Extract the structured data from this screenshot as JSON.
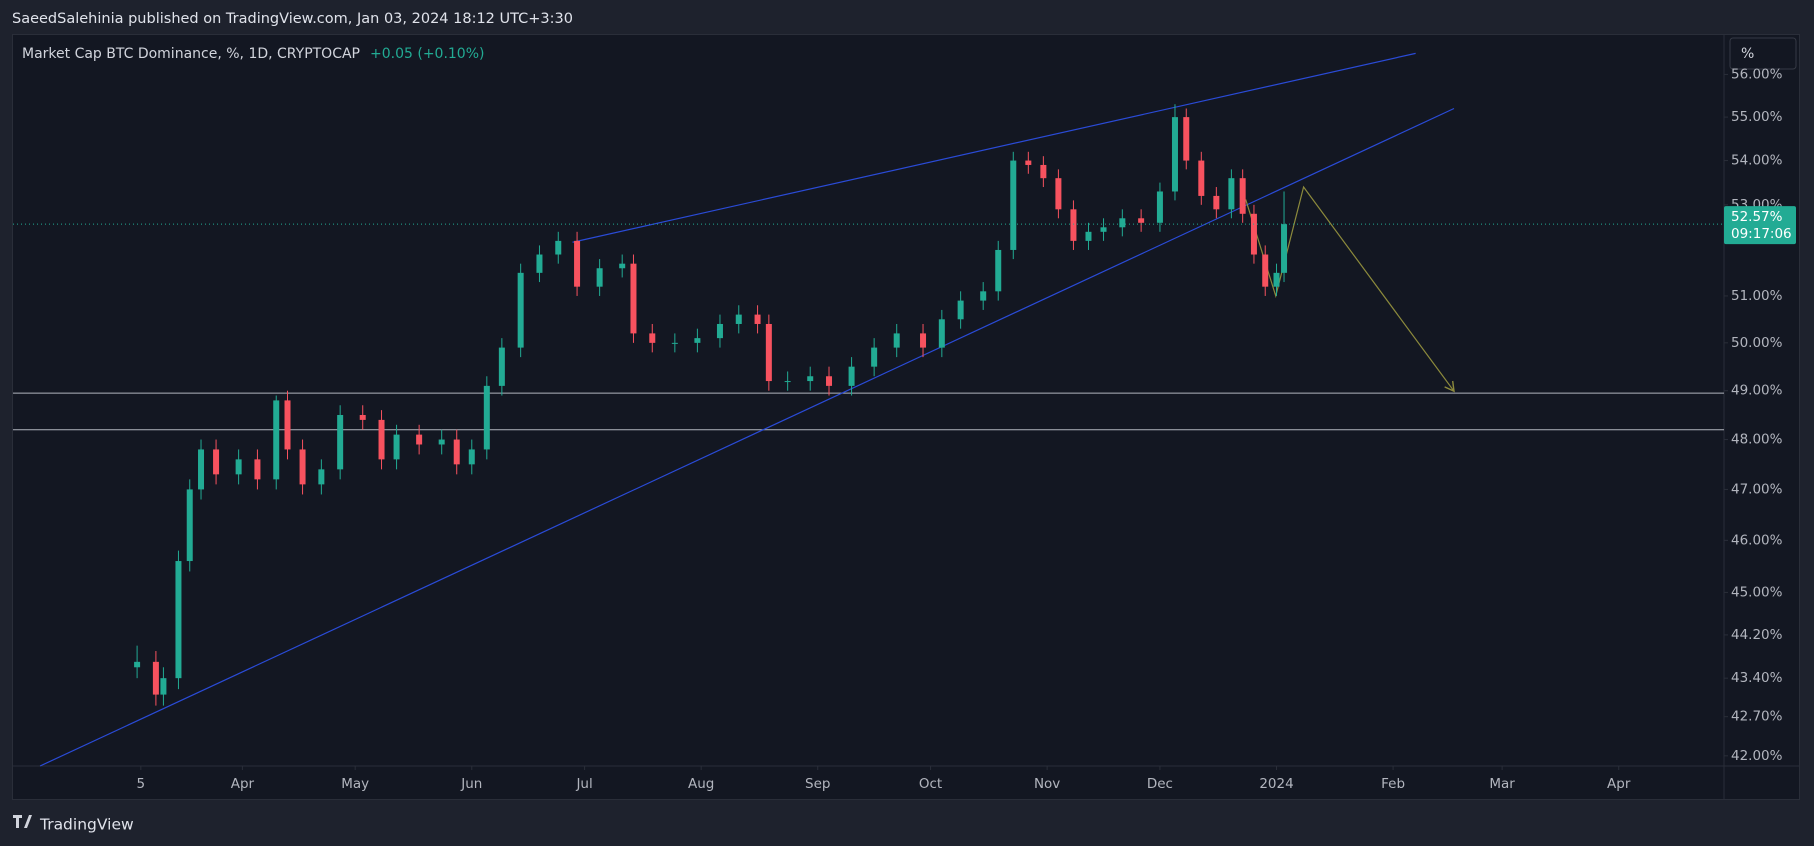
{
  "header": {
    "publisher": "SaeedSalehinia published on TradingView.com, Jan 03, 2024 18:12 UTC+3:30"
  },
  "footer": {
    "brand": "TradingView"
  },
  "scale_button": "%",
  "chart_data": {
    "type": "candlestick",
    "title": "Market Cap BTC Dominance, %, 1D, CRYPTOCAP",
    "change": "+0.05 (+0.10%)",
    "up_color": "#22ab94",
    "down_color": "#f7525f",
    "log_scale": true,
    "grid": false,
    "xlim": [
      -30,
      425
    ],
    "ylim": [
      41.82,
      56.94
    ],
    "xticks": [
      {
        "value": 4,
        "label": "5"
      },
      {
        "value": 31,
        "label": "Apr"
      },
      {
        "value": 61,
        "label": "May"
      },
      {
        "value": 92,
        "label": "Jun"
      },
      {
        "value": 122,
        "label": "Jul"
      },
      {
        "value": 153,
        "label": "Aug"
      },
      {
        "value": 184,
        "label": "Sep"
      },
      {
        "value": 214,
        "label": "Oct"
      },
      {
        "value": 245,
        "label": "Nov"
      },
      {
        "value": 275,
        "label": "Dec"
      },
      {
        "value": 306,
        "label": "2024"
      },
      {
        "value": 337,
        "label": "Feb"
      },
      {
        "value": 366,
        "label": "Mar"
      },
      {
        "value": 397,
        "label": "Apr"
      }
    ],
    "yticks": [
      {
        "value": 42,
        "label": "42.00%"
      },
      {
        "value": 42.7,
        "label": "42.70%"
      },
      {
        "value": 43.4,
        "label": "43.40%"
      },
      {
        "value": 44.2,
        "label": "44.20%"
      },
      {
        "value": 45,
        "label": "45.00%"
      },
      {
        "value": 46,
        "label": "46.00%"
      },
      {
        "value": 47,
        "label": "47.00%"
      },
      {
        "value": 48,
        "label": "48.00%"
      },
      {
        "value": 49,
        "label": "49.00%"
      },
      {
        "value": 50,
        "label": "50.00%"
      },
      {
        "value": 51,
        "label": "51.00%"
      },
      {
        "value": 53,
        "label": "53.00%"
      },
      {
        "value": 54,
        "label": "54.00%"
      },
      {
        "value": 55,
        "label": "55.00%"
      },
      {
        "value": 56,
        "label": "56.00%"
      }
    ],
    "last_price": {
      "value": 52.57,
      "label": "52.57%"
    },
    "countdown": "09:17:06",
    "x": [
      3,
      8,
      10,
      14,
      17,
      20,
      24,
      30,
      35,
      40,
      43,
      47,
      52,
      57,
      63,
      68,
      72,
      78,
      84,
      88,
      92,
      96,
      100,
      105,
      110,
      115,
      120,
      126,
      132,
      135,
      140,
      146,
      152,
      158,
      163,
      168,
      171,
      176,
      182,
      187,
      193,
      199,
      205,
      212,
      217,
      222,
      228,
      232,
      236,
      240,
      244,
      248,
      252,
      256,
      260,
      265,
      270,
      275,
      279,
      282,
      286,
      290,
      294,
      297,
      300,
      303,
      306,
      308
    ],
    "open": [
      43.6,
      43.7,
      43.1,
      43.4,
      45.6,
      47.0,
      47.8,
      47.3,
      47.6,
      47.2,
      48.8,
      47.8,
      47.1,
      47.4,
      48.5,
      48.4,
      47.6,
      48.1,
      47.9,
      48.0,
      47.5,
      47.8,
      49.1,
      49.9,
      51.5,
      51.9,
      52.2,
      51.2,
      51.6,
      51.7,
      50.2,
      50.0,
      50.0,
      50.1,
      50.4,
      50.6,
      50.4,
      49.2,
      49.2,
      49.3,
      49.1,
      49.5,
      49.9,
      50.2,
      49.9,
      50.5,
      50.9,
      51.1,
      52.0,
      54.0,
      53.9,
      53.6,
      52.9,
      52.2,
      52.4,
      52.5,
      52.7,
      52.6,
      53.3,
      55.0,
      54.0,
      53.2,
      52.9,
      53.6,
      52.8,
      51.9,
      51.2,
      51.5
    ],
    "high": [
      44.0,
      43.9,
      43.6,
      45.8,
      47.2,
      48.0,
      48.0,
      47.8,
      47.8,
      48.9,
      49.0,
      48.0,
      47.6,
      48.7,
      48.7,
      48.6,
      48.3,
      48.3,
      48.2,
      48.2,
      48.0,
      49.3,
      50.1,
      51.7,
      52.1,
      52.4,
      52.4,
      51.8,
      51.9,
      51.9,
      50.4,
      50.2,
      50.3,
      50.6,
      50.8,
      50.8,
      50.6,
      49.4,
      49.5,
      49.5,
      49.7,
      50.1,
      50.4,
      50.4,
      50.7,
      51.1,
      51.3,
      52.2,
      54.2,
      54.2,
      54.1,
      53.8,
      53.1,
      52.6,
      52.7,
      52.9,
      52.9,
      53.5,
      55.3,
      55.2,
      54.2,
      53.4,
      53.8,
      53.8,
      53.0,
      52.1,
      51.7,
      53.3
    ],
    "low": [
      43.4,
      42.9,
      42.9,
      43.2,
      45.4,
      46.8,
      47.1,
      47.1,
      47.0,
      47.0,
      47.6,
      46.9,
      46.9,
      47.2,
      48.2,
      47.4,
      47.4,
      47.7,
      47.7,
      47.3,
      47.3,
      47.6,
      48.9,
      49.7,
      51.3,
      51.7,
      51.0,
      51.0,
      51.4,
      50.0,
      49.8,
      49.8,
      49.8,
      49.9,
      50.2,
      50.2,
      49.0,
      49.0,
      49.0,
      48.9,
      48.9,
      49.3,
      49.7,
      49.7,
      49.7,
      50.3,
      50.7,
      50.9,
      51.8,
      53.7,
      53.4,
      52.7,
      52.0,
      52.0,
      52.2,
      52.3,
      52.4,
      52.4,
      53.1,
      53.8,
      53.0,
      52.7,
      52.7,
      52.6,
      51.7,
      51.0,
      51.0,
      51.3
    ],
    "close": [
      43.7,
      43.1,
      43.4,
      45.6,
      47.0,
      47.8,
      47.3,
      47.6,
      47.2,
      48.8,
      47.8,
      47.1,
      47.4,
      48.5,
      48.4,
      47.6,
      48.1,
      47.9,
      48.0,
      47.5,
      47.8,
      49.1,
      49.9,
      51.5,
      51.9,
      52.2,
      51.2,
      51.6,
      51.7,
      50.2,
      50.0,
      50.0,
      50.1,
      50.4,
      50.6,
      50.4,
      49.2,
      49.2,
      49.3,
      49.1,
      49.5,
      49.9,
      50.2,
      49.9,
      50.5,
      50.9,
      51.1,
      52.0,
      54.0,
      53.9,
      53.6,
      52.9,
      52.2,
      52.4,
      52.5,
      52.7,
      52.6,
      53.3,
      55.0,
      54.0,
      53.2,
      52.9,
      53.6,
      52.8,
      51.9,
      51.2,
      51.5,
      52.57
    ],
    "hlines": [
      48.95,
      48.2
    ],
    "hline_color": "#b2b5be",
    "drawings": [
      {
        "color": "#2a4bd7",
        "x": [
          118.8,
          343
        ],
        "y": [
          52.17,
          56.5
        ]
      },
      {
        "color": "#2a4bd7",
        "x": [
          -22.8,
          353.2
        ],
        "y": [
          41.82,
          55.2
        ]
      },
      {
        "color": "#8c8a3c",
        "x": [
          297.8,
          305.8,
          313.2,
          353.2
        ],
        "y": [
          53.12,
          51.0,
          53.4,
          48.99
        ]
      }
    ]
  }
}
